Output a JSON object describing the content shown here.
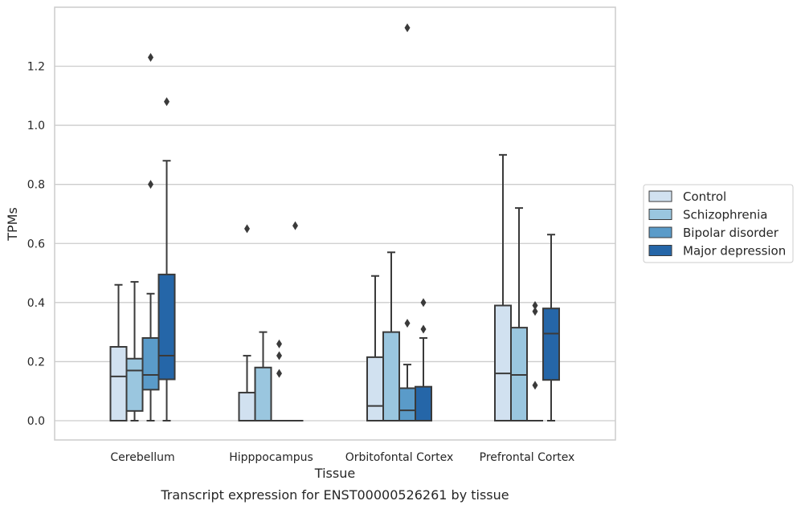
{
  "chart_data": {
    "type": "box",
    "title": "",
    "caption": "Transcript expression for ENST00000526261 by tissue",
    "xlabel": "Tissue",
    "ylabel": "TPMs",
    "ylim": [
      -0.065,
      1.4
    ],
    "yticks": [
      0.0,
      0.2,
      0.4,
      0.6,
      0.8,
      1.0,
      1.2
    ],
    "ytick_labels": [
      "0.0",
      "0.2",
      "0.4",
      "0.6",
      "0.8",
      "1.0",
      "1.2"
    ],
    "grid": "horizontal",
    "legend_position": "right",
    "categories": [
      "Cerebellum",
      "Hipppocampus",
      "Orbitofontal Cortex",
      "Prefrontal Cortex"
    ],
    "series": [
      {
        "name": "Control",
        "color": "#d1e1f0",
        "boxes": [
          {
            "min": 0.0,
            "q1": 0.0,
            "median": 0.15,
            "q3": 0.25,
            "max": 0.46,
            "outliers": []
          },
          {
            "min": 0.0,
            "q1": 0.0,
            "median": 0.0,
            "q3": 0.095,
            "max": 0.22,
            "outliers": [
              0.65
            ]
          },
          {
            "min": 0.0,
            "q1": 0.0,
            "median": 0.05,
            "q3": 0.215,
            "max": 0.49,
            "outliers": []
          },
          {
            "min": 0.0,
            "q1": 0.0,
            "median": 0.16,
            "q3": 0.39,
            "max": 0.9,
            "outliers": []
          }
        ]
      },
      {
        "name": "Schizophrenia",
        "color": "#9ac6df",
        "boxes": [
          {
            "min": 0.0,
            "q1": 0.033,
            "median": 0.17,
            "q3": 0.21,
            "max": 0.47,
            "outliers": []
          },
          {
            "min": 0.0,
            "q1": 0.0,
            "median": 0.0,
            "q3": 0.18,
            "max": 0.3,
            "outliers": []
          },
          {
            "min": 0.0,
            "q1": 0.0,
            "median": 0.0,
            "q3": 0.3,
            "max": 0.57,
            "outliers": []
          },
          {
            "min": 0.0,
            "q1": 0.0,
            "median": 0.155,
            "q3": 0.315,
            "max": 0.72,
            "outliers": []
          }
        ]
      },
      {
        "name": "Bipolar disorder",
        "color": "#5a9bc9",
        "boxes": [
          {
            "min": 0.0,
            "q1": 0.105,
            "median": 0.155,
            "q3": 0.28,
            "max": 0.43,
            "outliers": [
              0.8,
              1.23
            ]
          },
          {
            "min": 0.0,
            "q1": 0.0,
            "median": 0.0,
            "q3": 0.0,
            "max": 0.0,
            "outliers": [
              0.16,
              0.22,
              0.26
            ]
          },
          {
            "min": 0.0,
            "q1": 0.0,
            "median": 0.035,
            "q3": 0.11,
            "max": 0.19,
            "outliers": [
              0.33,
              1.33
            ]
          },
          {
            "min": 0.0,
            "q1": 0.0,
            "median": 0.0,
            "q3": 0.0,
            "max": 0.0,
            "outliers": [
              0.12,
              0.37,
              0.39
            ]
          }
        ]
      },
      {
        "name": "Major depression",
        "color": "#2566a8",
        "boxes": [
          {
            "min": 0.0,
            "q1": 0.14,
            "median": 0.22,
            "q3": 0.495,
            "max": 0.88,
            "outliers": [
              1.08
            ]
          },
          {
            "min": 0.0,
            "q1": 0.0,
            "median": 0.0,
            "q3": 0.0,
            "max": 0.0,
            "outliers": [
              0.66
            ]
          },
          {
            "min": 0.0,
            "q1": 0.0,
            "median": 0.0,
            "q3": 0.115,
            "max": 0.28,
            "outliers": [
              0.31,
              0.4
            ]
          },
          {
            "min": 0.0,
            "q1": 0.138,
            "median": 0.295,
            "q3": 0.38,
            "max": 0.63,
            "outliers": []
          }
        ]
      }
    ]
  }
}
